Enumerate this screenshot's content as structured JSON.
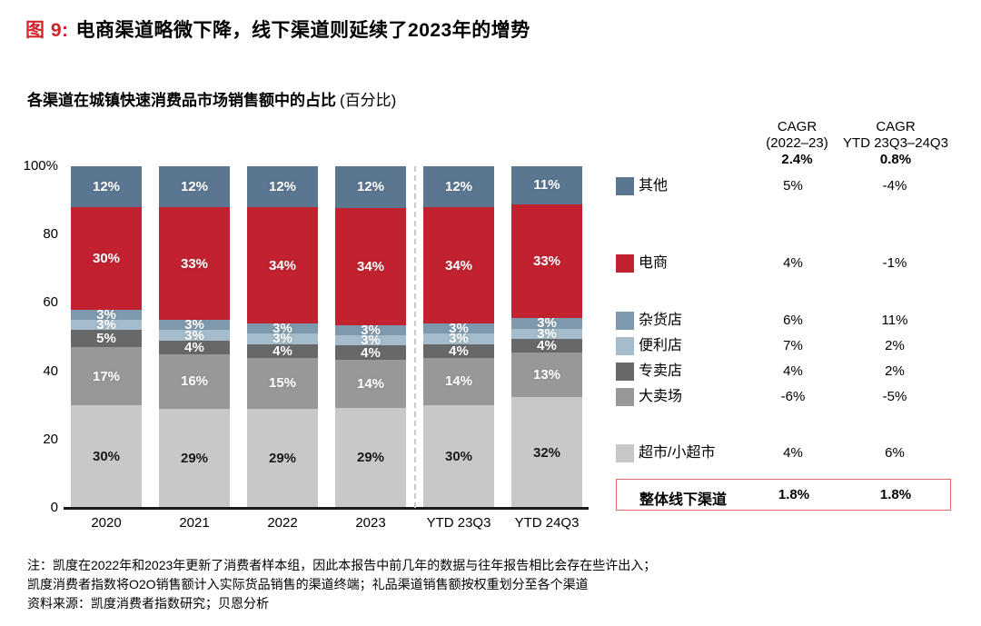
{
  "figure": {
    "tag": "图 9:",
    "title": "电商渠道略微下降，线下渠道则延续了2023年的增势",
    "subtitle": "各渠道在城镇快速消费品市场销售额中的占比",
    "subtitle_unit": "(百分比)"
  },
  "colors": {
    "accent_red": "#d2232a",
    "total_box_border": "#e06a6a",
    "axis_line": "#1a1a1a",
    "divider_dash": "#c9c9c9"
  },
  "chart_data": {
    "type": "bar",
    "stacked": true,
    "title": "各渠道在城镇快速消费品市场销售额中的占比 (百分比)",
    "xlabel": "",
    "ylabel": "占比 (百分比)",
    "ylim": [
      0,
      100
    ],
    "grid": false,
    "categories": [
      "2020",
      "2021",
      "2022",
      "2023",
      "YTD 23Q3",
      "YTD 24Q3"
    ],
    "y_ticks": [
      {
        "label": "100%",
        "value": 100
      },
      {
        "label": "80",
        "value": 80
      },
      {
        "label": "60",
        "value": 60
      },
      {
        "label": "40",
        "value": 40
      },
      {
        "label": "20",
        "value": 20
      },
      {
        "label": "0",
        "value": 0
      }
    ],
    "divider_after_category_index": 3,
    "series_top_to_bottom": [
      {
        "name": "其他",
        "color": "#5a7690",
        "label_color": "#ffffff",
        "values": [
          12,
          12,
          12,
          12,
          12,
          11
        ]
      },
      {
        "name": "电商",
        "color": "#c2212f",
        "label_color": "#ffffff",
        "values": [
          30,
          33,
          34,
          34,
          34,
          33
        ]
      },
      {
        "name": "杂货店",
        "color": "#7e99ad",
        "label_color": "#ffffff",
        "values": [
          3,
          3,
          3,
          3,
          3,
          3
        ]
      },
      {
        "name": "便利店",
        "color": "#a4bccb",
        "label_color": "#ffffff",
        "values": [
          3,
          3,
          3,
          3,
          3,
          3
        ]
      },
      {
        "name": "专卖店",
        "color": "#66686a",
        "label_color": "#ffffff",
        "values": [
          5,
          4,
          4,
          4,
          4,
          4
        ]
      },
      {
        "name": "大卖场",
        "color": "#97989a",
        "label_color": "#ffffff",
        "values": [
          17,
          16,
          15,
          14,
          14,
          13
        ]
      },
      {
        "name": "超市/小超市",
        "color": "#c7c8ca",
        "label_color": "#1a1a1a",
        "values": [
          30,
          29,
          29,
          29,
          30,
          32
        ]
      }
    ]
  },
  "cagr_table": {
    "col1_header_line1": "CAGR",
    "col1_header_line2": "(2022–23)",
    "col1_total": "2.4%",
    "col2_header_line1": "CAGR",
    "col2_header_line2": "YTD 23Q3–24Q3",
    "col2_total": "0.8%",
    "rows": [
      {
        "name": "其他",
        "swatch": "#5a7690",
        "cagr1": "5%",
        "cagr2": "-4%"
      },
      {
        "name": "电商",
        "swatch": "#c2212f",
        "cagr1": "4%",
        "cagr2": "-1%"
      },
      {
        "name": "杂货店",
        "swatch": "#7e99ad",
        "cagr1": "6%",
        "cagr2": "11%"
      },
      {
        "name": "便利店",
        "swatch": "#a4bccb",
        "cagr1": "7%",
        "cagr2": "2%"
      },
      {
        "name": "专卖店",
        "swatch": "#66686a",
        "cagr1": "4%",
        "cagr2": "2%"
      },
      {
        "name": "大卖场",
        "swatch": "#97989a",
        "cagr1": "-6%",
        "cagr2": "-5%"
      },
      {
        "name": "超市/小超市",
        "swatch": "#c7c8ca",
        "cagr1": "4%",
        "cagr2": "6%"
      }
    ],
    "total_row": {
      "name": "整体线下渠道",
      "cagr1": "1.8%",
      "cagr2": "1.8%"
    }
  },
  "notes": {
    "line1": "注：凯度在2022年和2023年更新了消费者样本组，因此本报告中前几年的数据与往年报告相比会存在些许出入；",
    "line2": "凯度消费者指数将O2O销售额计入实际货品销售的渠道终端；礼品渠道销售额按权重划分至各个渠道",
    "line3": "资料来源：凯度消费者指数研究；贝恩分析"
  }
}
